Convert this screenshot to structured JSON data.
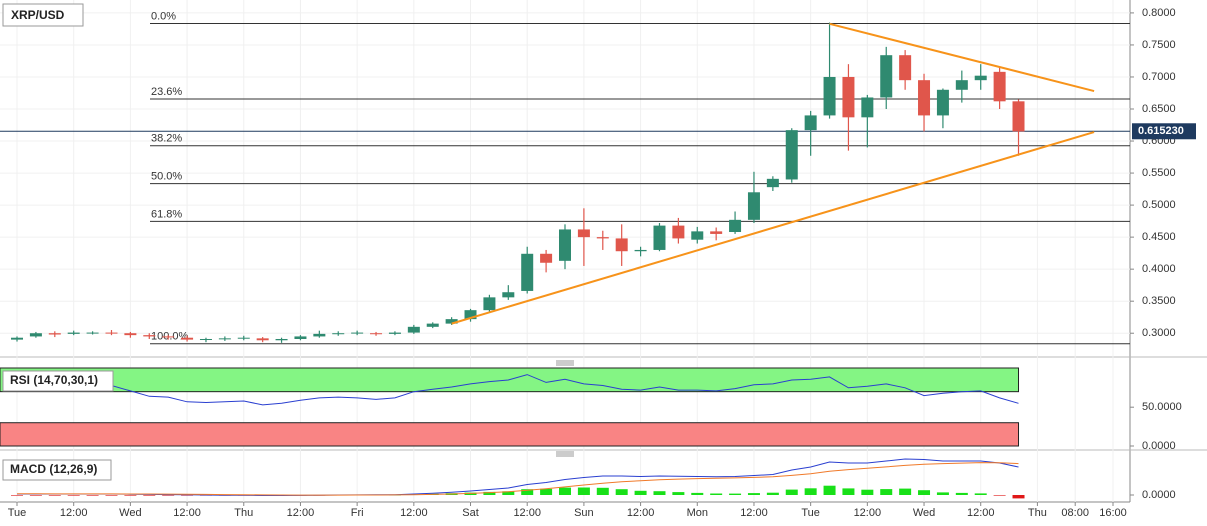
{
  "chart_data": [
    {
      "type": "candlestick",
      "title": "XRP/USD",
      "x": [
        0,
        1,
        2,
        3,
        4,
        5,
        6,
        7,
        8,
        9,
        10,
        11,
        12,
        13,
        14,
        15,
        16,
        17,
        18,
        19,
        20,
        21,
        22,
        23,
        24,
        25,
        26,
        27,
        28,
        29,
        30,
        31,
        32,
        33,
        34,
        35,
        36,
        37,
        38,
        39,
        40,
        41,
        42,
        43,
        44,
        45,
        46,
        47,
        48,
        49,
        50,
        51,
        52,
        53
      ],
      "open": [
        0.29,
        0.295,
        0.3,
        0.299,
        0.3,
        0.301,
        0.3,
        0.297,
        0.295,
        0.293,
        0.29,
        0.291,
        0.292,
        0.292,
        0.289,
        0.291,
        0.295,
        0.299,
        0.3,
        0.3,
        0.299,
        0.301,
        0.31,
        0.315,
        0.322,
        0.336,
        0.356,
        0.366,
        0.424,
        0.413,
        0.462,
        0.45,
        0.448,
        0.428,
        0.43,
        0.468,
        0.446,
        0.459,
        0.458,
        0.477,
        0.528,
        0.54,
        0.617,
        0.64,
        0.7,
        0.637,
        0.668,
        0.734,
        0.695,
        0.64,
        0.68,
        0.695,
        0.708,
        0.662
      ],
      "high": [
        0.295,
        0.302,
        0.303,
        0.304,
        0.303,
        0.305,
        0.302,
        0.3,
        0.297,
        0.296,
        0.293,
        0.295,
        0.296,
        0.294,
        0.293,
        0.297,
        0.304,
        0.303,
        0.304,
        0.302,
        0.303,
        0.313,
        0.317,
        0.325,
        0.338,
        0.36,
        0.375,
        0.435,
        0.43,
        0.47,
        0.495,
        0.46,
        0.47,
        0.435,
        0.472,
        0.48,
        0.466,
        0.465,
        0.49,
        0.552,
        0.545,
        0.62,
        0.647,
        0.785,
        0.72,
        0.672,
        0.747,
        0.742,
        0.705,
        0.682,
        0.71,
        0.72,
        0.715,
        0.665
      ],
      "low": [
        0.287,
        0.293,
        0.294,
        0.297,
        0.298,
        0.297,
        0.293,
        0.291,
        0.29,
        0.287,
        0.286,
        0.288,
        0.289,
        0.286,
        0.285,
        0.289,
        0.293,
        0.296,
        0.297,
        0.296,
        0.297,
        0.299,
        0.308,
        0.313,
        0.318,
        0.333,
        0.352,
        0.362,
        0.395,
        0.4,
        0.405,
        0.43,
        0.405,
        0.42,
        0.428,
        0.44,
        0.44,
        0.445,
        0.455,
        0.472,
        0.522,
        0.535,
        0.577,
        0.635,
        0.585,
        0.59,
        0.65,
        0.68,
        0.615,
        0.62,
        0.66,
        0.68,
        0.65,
        0.577
      ],
      "close": [
        0.293,
        0.3,
        0.298,
        0.301,
        0.301,
        0.3,
        0.297,
        0.295,
        0.294,
        0.29,
        0.291,
        0.292,
        0.293,
        0.289,
        0.291,
        0.295,
        0.299,
        0.3,
        0.301,
        0.299,
        0.301,
        0.31,
        0.315,
        0.322,
        0.336,
        0.356,
        0.364,
        0.424,
        0.41,
        0.462,
        0.45,
        0.448,
        0.428,
        0.43,
        0.468,
        0.448,
        0.459,
        0.455,
        0.477,
        0.52,
        0.541,
        0.617,
        0.64,
        0.7,
        0.637,
        0.668,
        0.734,
        0.695,
        0.64,
        0.68,
        0.695,
        0.702,
        0.662,
        0.615
      ],
      "up_color": "#2f8a70",
      "down_color": "#e0564b",
      "xlim": [
        -0.9,
        58.9
      ],
      "xticks": [
        {
          "value": 0,
          "label": "Tue"
        },
        {
          "value": 3,
          "label": "12:00"
        },
        {
          "value": 6,
          "label": "Wed"
        },
        {
          "value": 9,
          "label": "12:00"
        },
        {
          "value": 12,
          "label": "Thu"
        },
        {
          "value": 15,
          "label": "12:00"
        },
        {
          "value": 18,
          "label": "Fri"
        },
        {
          "value": 21,
          "label": "12:00"
        },
        {
          "value": 24,
          "label": "Sat"
        },
        {
          "value": 27,
          "label": "12:00"
        },
        {
          "value": 30,
          "label": "Sun"
        },
        {
          "value": 33,
          "label": "12:00"
        },
        {
          "value": 36,
          "label": "Mon"
        },
        {
          "value": 39,
          "label": "12:00"
        },
        {
          "value": 42,
          "label": "Tue"
        },
        {
          "value": 45,
          "label": "12:00"
        },
        {
          "value": 48,
          "label": "Wed"
        },
        {
          "value": 51,
          "label": "12:00"
        },
        {
          "value": 54,
          "label": "Thu"
        },
        {
          "value": 56,
          "label": "08:00"
        },
        {
          "value": 58,
          "label": "16:00"
        }
      ],
      "ylim": [
        0.2785,
        0.8061
      ],
      "yticks": [
        {
          "value": 0.8,
          "label": "0.8000"
        },
        {
          "value": 0.75,
          "label": "0.7500"
        },
        {
          "value": 0.7,
          "label": "0.7000"
        },
        {
          "value": 0.65,
          "label": "0.6500"
        },
        {
          "value": 0.6,
          "label": "0.6000"
        },
        {
          "value": 0.55,
          "label": "0.5500"
        },
        {
          "value": 0.5,
          "label": "0.5000"
        },
        {
          "value": 0.45,
          "label": "0.4500"
        },
        {
          "value": 0.4,
          "label": "0.4000"
        },
        {
          "value": 0.35,
          "label": "0.3500"
        },
        {
          "value": 0.3,
          "label": "0.3000"
        }
      ],
      "fib_levels": [
        {
          "value": 0.7835,
          "label": "0.0%"
        },
        {
          "value": 0.6656,
          "label": "23.6%"
        },
        {
          "value": 0.5927,
          "label": "38.2%"
        },
        {
          "value": 0.5335,
          "label": "50.0%"
        },
        {
          "value": 0.4745,
          "label": "61.8%"
        },
        {
          "value": 0.2835,
          "label": "100.0%"
        }
      ],
      "trendlines": [
        {
          "x": [
            43,
            57
          ],
          "y": [
            0.783,
            0.678
          ]
        },
        {
          "x": [
            23,
            57
          ],
          "y": [
            0.315,
            0.614
          ]
        }
      ],
      "trendline_color": "#f7931a",
      "last_price": {
        "value": 0.61523,
        "label": "0.615230"
      },
      "grid": true
    },
    {
      "type": "line",
      "title": "RSI (14,70,30,1)",
      "series": [
        {
          "color": "#2a3fd0",
          "values": [
            81,
            80,
            79,
            79,
            80,
            78,
            71,
            64,
            63,
            57,
            56,
            57,
            58,
            53,
            55,
            59,
            62,
            63,
            62,
            60,
            62,
            70,
            73,
            76,
            80,
            83,
            85,
            92,
            82,
            86,
            80,
            78,
            73,
            72,
            76,
            72,
            72,
            71,
            74,
            79,
            80,
            85,
            86,
            89,
            75,
            77,
            80,
            75,
            65,
            68,
            70,
            71,
            62,
            55
          ]
        }
      ],
      "ylim": [
        0,
        100.5
      ],
      "yticks": [
        {
          "value": 50,
          "label": "50.0000"
        },
        {
          "value": 0,
          "label": "0.0000"
        }
      ],
      "overbought": 70,
      "oversold": 30
    },
    {
      "type": "macd",
      "title": "MACD (12,26,9)",
      "series": [
        {
          "color": "#2a3fd0",
          "values": [
            0.001,
            0.001,
            0.001,
            0.001,
            0.001,
            0.001,
            0.0008,
            0.0006,
            0.0004,
            0.0002,
            0,
            -0.0002,
            -0.0003,
            -0.0005,
            -0.0005,
            -0.0004,
            -0.0002,
            0,
            0.0001,
            0.0002,
            0.0003,
            0.001,
            0.0018,
            0.0028,
            0.004,
            0.0055,
            0.007,
            0.0105,
            0.0125,
            0.0155,
            0.0175,
            0.019,
            0.019,
            0.0185,
            0.019,
            0.0188,
            0.0185,
            0.0183,
            0.0185,
            0.0195,
            0.0205,
            0.025,
            0.028,
            0.033,
            0.032,
            0.032,
            0.034,
            0.036,
            0.0355,
            0.034,
            0.034,
            0.034,
            0.032,
            0.028
          ]
        },
        {
          "color": "#f07a2a",
          "values": [
            0.0012,
            0.0012,
            0.0011,
            0.0011,
            0.0011,
            0.0011,
            0.001,
            0.001,
            0.0009,
            0.0008,
            0.0006,
            0.0004,
            0.0003,
            0.0001,
            0,
            -0.0001,
            -0.0001,
            -0.0001,
            0,
            0,
            0.0001,
            0.0003,
            0.0006,
            0.001,
            0.0016,
            0.0024,
            0.0033,
            0.0047,
            0.0063,
            0.0081,
            0.01,
            0.0118,
            0.0132,
            0.0143,
            0.0152,
            0.0159,
            0.0164,
            0.0168,
            0.0171,
            0.0176,
            0.0182,
            0.0196,
            0.0213,
            0.0237,
            0.0254,
            0.0267,
            0.0281,
            0.0296,
            0.0307,
            0.0314,
            0.0319,
            0.0324,
            0.0323,
            0.0314
          ]
        }
      ],
      "histogram": [
        -0.0002,
        -0.0002,
        -0.0001,
        -0.0001,
        -0.0001,
        -0.0001,
        -0.0002,
        -0.0004,
        -0.0005,
        -0.0006,
        -0.0006,
        -0.0006,
        -0.0006,
        -0.0006,
        -0.0005,
        -0.0003,
        -0.0001,
        0.0001,
        0.0001,
        0.0002,
        0.0002,
        0.0007,
        0.0012,
        0.0018,
        0.0024,
        0.0031,
        0.0037,
        0.0058,
        0.0062,
        0.0074,
        0.0075,
        0.0072,
        0.0058,
        0.0042,
        0.0038,
        0.0029,
        0.0021,
        0.0015,
        0.0014,
        0.0019,
        0.0023,
        0.0054,
        0.0067,
        0.0093,
        0.0066,
        0.0053,
        0.0059,
        0.0064,
        0.0048,
        0.0026,
        0.0021,
        0.0016,
        -0.0003,
        -0.0034
      ],
      "hist_up_color": "#18e018",
      "hist_down_color": "#e01818",
      "ylim": [
        -0.007,
        0.037
      ],
      "yticks": [
        {
          "value": 0,
          "label": "0.0000"
        }
      ]
    }
  ]
}
